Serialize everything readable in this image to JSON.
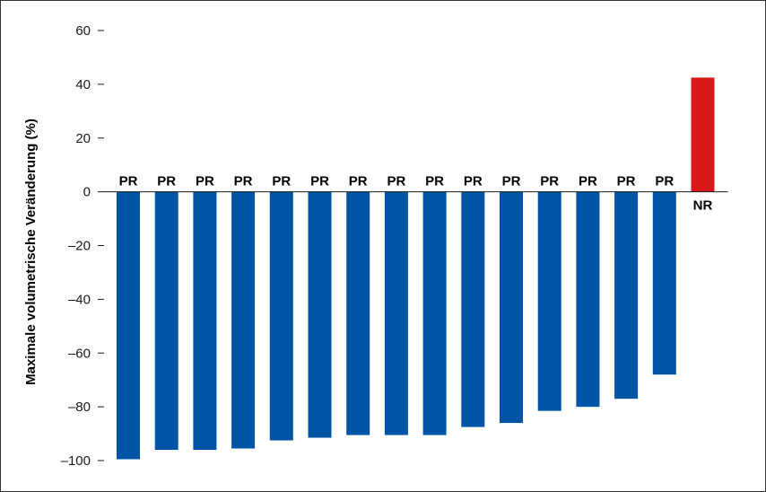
{
  "chart_data": {
    "type": "bar",
    "title": "",
    "xlabel": "",
    "ylabel": "Maximale volumetrische Veränderung (%)",
    "ylim": [
      -100,
      60
    ],
    "yticks": [
      {
        "value": 60,
        "label": "60"
      },
      {
        "value": 40,
        "label": "40"
      },
      {
        "value": 20,
        "label": "20"
      },
      {
        "value": 0,
        "label": "0"
      },
      {
        "value": -20,
        "label": "–20"
      },
      {
        "value": -40,
        "label": "–40"
      },
      {
        "value": -60,
        "label": "–60"
      },
      {
        "value": -80,
        "label": "–80"
      },
      {
        "value": -100,
        "label": "–100"
      }
    ],
    "grid": false,
    "legend": "none",
    "colors": {
      "PR": "#0054a6",
      "NR": "#d7191c"
    },
    "bars": [
      {
        "value": -99.5,
        "label": "PR"
      },
      {
        "value": -96,
        "label": "PR"
      },
      {
        "value": -96,
        "label": "PR"
      },
      {
        "value": -95.5,
        "label": "PR"
      },
      {
        "value": -92.5,
        "label": "PR"
      },
      {
        "value": -91.5,
        "label": "PR"
      },
      {
        "value": -90.5,
        "label": "PR"
      },
      {
        "value": -90.5,
        "label": "PR"
      },
      {
        "value": -90.5,
        "label": "PR"
      },
      {
        "value": -87.5,
        "label": "PR"
      },
      {
        "value": -86,
        "label": "PR"
      },
      {
        "value": -81.5,
        "label": "PR"
      },
      {
        "value": -80,
        "label": "PR"
      },
      {
        "value": -77,
        "label": "PR"
      },
      {
        "value": -68,
        "label": "PR"
      },
      {
        "value": 42.5,
        "label": "NR"
      }
    ]
  }
}
